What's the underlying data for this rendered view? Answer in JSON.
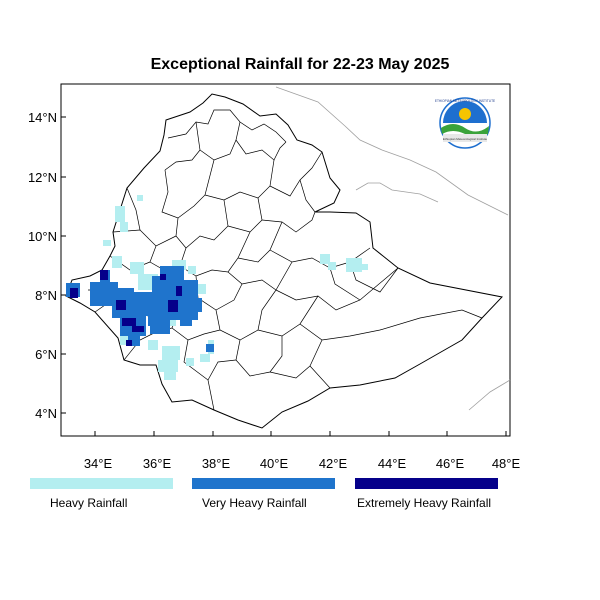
{
  "title": "Exceptional Rainfall for 22-23 May 2025",
  "axes": {
    "lat_ticks": [
      "4°N",
      "6°N",
      "8°N",
      "10°N",
      "12°N",
      "14°N"
    ],
    "lon_ticks": [
      "34°E",
      "36°E",
      "38°E",
      "40°E",
      "42°E",
      "44°E",
      "46°E",
      "48°E"
    ]
  },
  "logo": {
    "arc_text": "ETHIOPIAN METEOROLOGY INSTITUTE",
    "sub_text": "Ethiopian Meteorological Institute",
    "colors": {
      "sky": "#1e6fcf",
      "ground": "#3aa33a",
      "sun": "#f6c400"
    }
  },
  "legend": [
    {
      "label": "Heavy Rainfall",
      "color": "#b4eef0"
    },
    {
      "label": "Very Heavy Rainfall",
      "color": "#1f74cc"
    },
    {
      "label": "Extremely Heavy Rainfall",
      "color": "#05008a"
    }
  ]
}
